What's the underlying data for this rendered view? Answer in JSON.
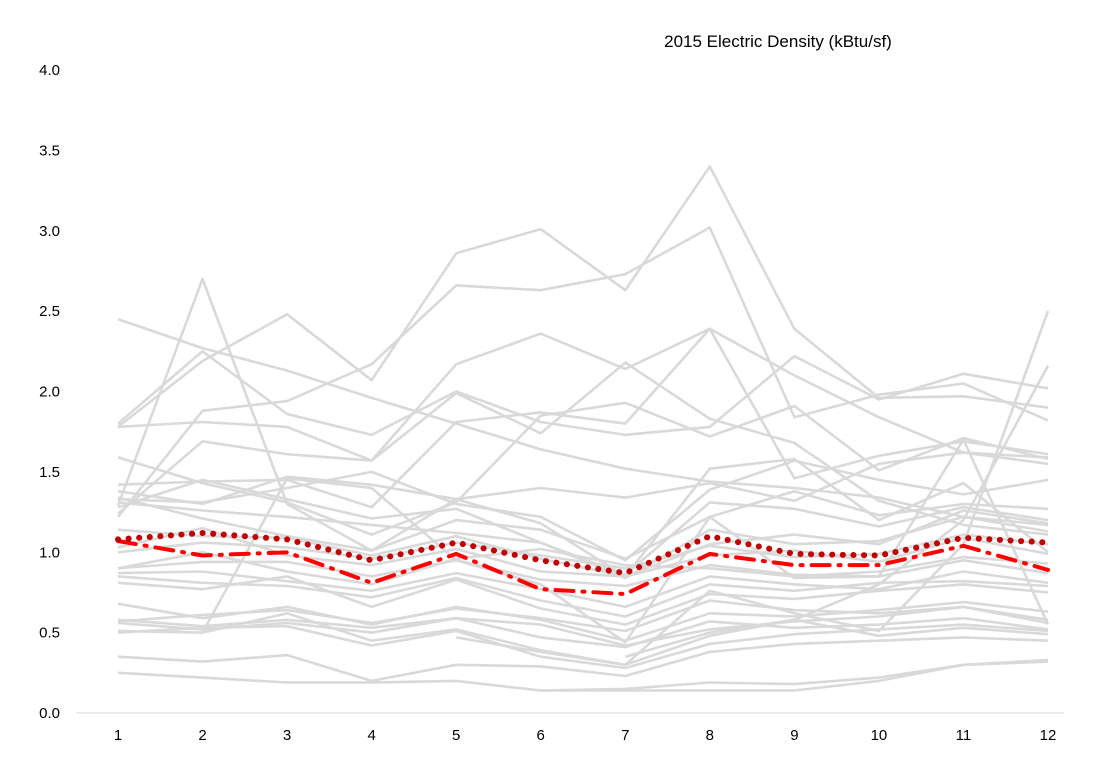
{
  "chart_data": {
    "type": "line",
    "title": "2015 Electric Density (kBtu/sf)",
    "xlabel": "",
    "ylabel": "",
    "x": [
      1,
      2,
      3,
      4,
      5,
      6,
      7,
      8,
      9,
      10,
      11,
      12
    ],
    "ylim": [
      0,
      4
    ],
    "yticks": [
      "0.0",
      "0.5",
      "1.0",
      "1.5",
      "2.0",
      "2.5",
      "3.0",
      "3.5",
      "4.0"
    ],
    "xticks": [
      "1",
      "2",
      "3",
      "4",
      "5",
      "6",
      "7",
      "8",
      "9",
      "10",
      "11",
      "12"
    ],
    "grid": false,
    "legend": "none",
    "colors": {
      "building_lines": "#d9d9d9",
      "dotted_series": "#c00000",
      "dashdot_series": "#ff0000",
      "axis": "#d9d9d9"
    },
    "series": [
      {
        "style": "grey",
        "values": [
          2.45,
          2.27,
          2.13,
          1.96,
          1.8,
          1.64,
          1.52,
          1.44,
          1.4,
          1.34,
          1.22,
          1.17
        ]
      },
      {
        "style": "grey",
        "values": [
          1.8,
          2.25,
          1.86,
          1.73,
          2.0,
          1.81,
          1.73,
          1.78,
          2.22,
          1.95,
          2.11,
          2.02
        ]
      },
      {
        "style": "grey",
        "values": [
          1.78,
          2.19,
          2.48,
          2.07,
          2.86,
          3.01,
          2.63,
          3.4,
          2.39,
          1.96,
          1.97,
          1.9
        ]
      },
      {
        "style": "grey",
        "values": [
          1.29,
          2.7,
          1.3,
          1.01,
          1.33,
          1.18,
          0.85,
          1.52,
          1.58,
          1.2,
          1.43,
          1.0
        ]
      },
      {
        "style": "grey",
        "values": [
          1.22,
          1.88,
          1.94,
          2.17,
          2.66,
          2.63,
          2.73,
          3.02,
          1.84,
          1.98,
          2.05,
          1.82
        ]
      },
      {
        "style": "grey",
        "values": [
          1.78,
          1.81,
          1.78,
          1.57,
          2.17,
          2.36,
          2.14,
          2.39,
          2.1,
          1.84,
          1.62,
          1.55
        ]
      },
      {
        "style": "grey",
        "values": [
          1.24,
          1.69,
          1.61,
          1.57,
          1.99,
          1.74,
          2.18,
          1.83,
          1.68,
          1.32,
          1.17,
          1.11
        ]
      },
      {
        "style": "grey",
        "values": [
          1.59,
          1.43,
          1.31,
          1.11,
          1.31,
          1.85,
          1.93,
          1.72,
          1.91,
          1.51,
          1.71,
          1.58
        ]
      },
      {
        "style": "grey",
        "values": [
          1.42,
          1.44,
          1.45,
          1.28,
          1.81,
          1.87,
          1.8,
          2.39,
          1.46,
          1.6,
          1.69,
          1.61
        ]
      },
      {
        "style": "grey",
        "values": [
          1.38,
          1.3,
          1.47,
          1.42,
          1.33,
          1.4,
          1.34,
          1.43,
          1.32,
          1.55,
          1.62,
          1.59
        ]
      },
      {
        "style": "grey",
        "values": [
          1.33,
          1.31,
          1.4,
          1.5,
          1.3,
          1.22,
          0.95,
          1.39,
          1.57,
          1.45,
          1.36,
          1.45
        ]
      },
      {
        "style": "grey",
        "values": [
          1.34,
          1.21,
          1.1,
          1.01,
          1.2,
          1.14,
          0.96,
          1.22,
          1.38,
          1.23,
          1.3,
          1.27
        ]
      },
      {
        "style": "grey",
        "values": [
          1.28,
          1.45,
          1.33,
          1.21,
          1.27,
          1.06,
          0.86,
          1.31,
          1.27,
          1.16,
          1.28,
          1.2
        ]
      },
      {
        "style": "grey",
        "values": [
          1.31,
          1.26,
          1.22,
          1.17,
          1.12,
          1.06,
          0.84,
          1.14,
          1.05,
          1.07,
          1.22,
          1.13
        ]
      },
      {
        "style": "grey",
        "values": [
          1.14,
          1.1,
          1.09,
          0.98,
          1.1,
          0.96,
          0.85,
          1.05,
          1.11,
          1.05,
          1.26,
          1.18
        ]
      },
      {
        "style": "grey",
        "values": [
          1.03,
          1.15,
          0.98,
          0.92,
          1.02,
          0.88,
          0.85,
          0.98,
          1.01,
          0.94,
          1.09,
          0.99
        ]
      },
      {
        "style": "grey",
        "values": [
          0.9,
          0.94,
          0.94,
          0.85,
          0.95,
          0.83,
          0.79,
          0.92,
          0.86,
          0.85,
          0.95,
          0.87
        ]
      },
      {
        "style": "grey",
        "values": [
          0.87,
          0.88,
          0.82,
          0.76,
          0.87,
          0.77,
          0.66,
          0.85,
          0.8,
          0.77,
          0.88,
          0.81
        ]
      },
      {
        "style": "grey",
        "values": [
          0.85,
          0.81,
          0.79,
          0.72,
          0.84,
          0.7,
          0.6,
          0.8,
          0.76,
          0.81,
          0.82,
          0.79
        ]
      },
      {
        "style": "grey",
        "values": [
          0.81,
          0.77,
          0.85,
          0.66,
          0.83,
          0.65,
          0.55,
          0.74,
          0.71,
          0.76,
          0.8,
          0.75
        ]
      },
      {
        "style": "grey",
        "values": [
          0.68,
          0.59,
          0.66,
          0.55,
          0.66,
          0.58,
          0.45,
          0.62,
          0.6,
          0.64,
          0.69,
          0.63
        ]
      },
      {
        "style": "grey",
        "values": [
          0.57,
          0.61,
          0.64,
          0.56,
          0.65,
          0.59,
          0.51,
          0.7,
          0.64,
          0.62,
          0.66,
          0.56
        ]
      },
      {
        "style": "grey",
        "values": [
          0.56,
          0.52,
          0.56,
          0.5,
          0.59,
          0.47,
          0.41,
          0.57,
          0.53,
          0.55,
          0.59,
          0.52
        ]
      },
      {
        "style": "grey",
        "values": [
          0.51,
          0.5,
          0.62,
          0.45,
          0.52,
          0.39,
          0.3,
          0.48,
          0.58,
          0.48,
          0.53,
          0.49
        ]
      },
      {
        "style": "grey",
        "values": [
          0.5,
          0.53,
          0.54,
          0.42,
          0.51,
          0.35,
          0.28,
          0.43,
          0.49,
          0.52,
          0.55,
          0.51
        ]
      },
      {
        "style": "grey",
        "values": [
          0.35,
          0.32,
          0.36,
          0.2,
          0.3,
          0.29,
          0.23,
          0.38,
          0.43,
          0.45,
          0.47,
          0.45
        ]
      },
      {
        "style": "grey",
        "values": [
          0.25,
          0.22,
          0.19,
          0.19,
          0.2,
          0.14,
          0.15,
          0.19,
          0.18,
          0.22,
          0.3,
          0.32
        ]
      },
      {
        "style": "grey",
        "values": [
          0.58,
          0.54,
          0.58,
          0.53,
          0.59,
          0.55,
          0.42,
          0.52,
          0.57,
          0.6,
          0.66,
          0.58
        ]
      },
      {
        "style": "grey",
        "values": [
          0.9,
          1.0,
          0.88,
          0.8,
          0.96,
          1.02,
          0.92,
          0.9,
          0.85,
          0.88,
          0.97,
          0.93
        ]
      },
      {
        "style": "grey",
        "values": [
          1.0,
          1.06,
          1.03,
          0.96,
          1.06,
          0.98,
          0.9,
          1.04,
          0.97,
          0.99,
          1.11,
          1.05
        ]
      },
      {
        "style": "grey",
        "values": [
          null,
          0.5,
          1.46,
          1.4,
          0.95,
          0.8,
          0.44,
          1.22,
          0.84,
          0.85,
          1.7,
          0.55
        ]
      },
      {
        "style": "grey",
        "values": [
          null,
          null,
          null,
          null,
          0.47,
          0.38,
          0.3,
          0.76,
          0.62,
          0.51,
          1.05,
          2.5
        ]
      },
      {
        "style": "grey",
        "values": [
          null,
          null,
          null,
          null,
          null,
          null,
          0.35,
          0.5,
          0.58,
          0.8,
          1.2,
          2.16
        ]
      },
      {
        "style": "grey",
        "values": [
          null,
          null,
          null,
          null,
          null,
          0.14,
          0.14,
          0.14,
          0.14,
          0.2,
          0.3,
          0.33
        ]
      },
      {
        "style": "dotted",
        "values": [
          1.08,
          1.12,
          1.08,
          0.95,
          1.06,
          0.95,
          0.87,
          1.1,
          0.99,
          0.98,
          1.09,
          1.06
        ]
      },
      {
        "style": "dashdot",
        "values": [
          1.07,
          0.98,
          1.0,
          0.81,
          0.99,
          0.77,
          0.74,
          0.99,
          0.92,
          0.92,
          1.04,
          0.89
        ]
      }
    ]
  }
}
